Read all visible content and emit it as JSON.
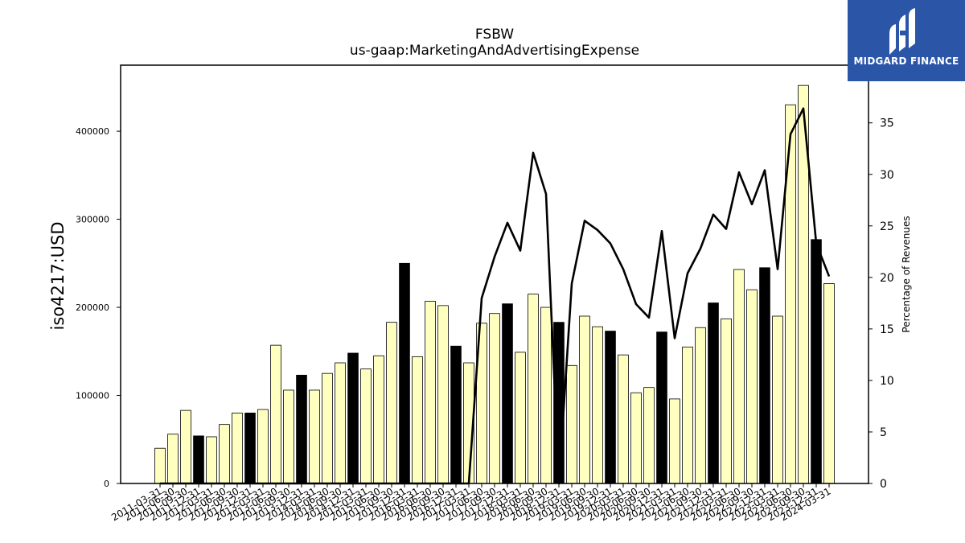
{
  "chart_data": {
    "type": "bar",
    "title": "FSBW",
    "subtitle": "us-gaap:MarketingAndAdvertisingExpense",
    "ylabel": "iso4217:USD",
    "y2label": "Percentage of Revenues",
    "ylim": [
      0,
      475000
    ],
    "y2lim": [
      0,
      40.6
    ],
    "yticks": [
      0,
      100000,
      200000,
      300000,
      400000
    ],
    "y2ticks": [
      0,
      5,
      10,
      15,
      20,
      25,
      30,
      35
    ],
    "bar_colors": {
      "quarter": "#ffffc0",
      "annual": "#000000"
    },
    "line_color": "#000000",
    "categories": [
      "2011-03-31",
      "2011-06-30",
      "2011-09-30",
      "2011-12-31",
      "2012-03-31",
      "2012-06-30",
      "2012-09-30",
      "2012-12-31",
      "2013-03-31",
      "2013-06-30",
      "2013-09-30",
      "2013-12-31",
      "2014-03-31",
      "2014-06-30",
      "2014-09-30",
      "2014-12-31",
      "2015-03-31",
      "2015-06-30",
      "2015-09-30",
      "2015-12-31",
      "2016-03-31",
      "2016-06-30",
      "2016-09-30",
      "2016-12-31",
      "2017-03-31",
      "2017-06-30",
      "2017-09-30",
      "2017-12-31",
      "2018-03-31",
      "2018-06-30",
      "2018-09-30",
      "2018-12-31",
      "2019-03-31",
      "2019-06-30",
      "2019-09-30",
      "2019-12-31",
      "2020-03-31",
      "2020-06-30",
      "2020-09-30",
      "2020-12-31",
      "2021-03-31",
      "2021-06-30",
      "2021-09-30",
      "2021-12-31",
      "2022-03-31",
      "2022-06-30",
      "2022-09-30",
      "2022-12-31",
      "2023-03-31",
      "2023-06-30",
      "2023-09-30",
      "2023-12-31",
      "2024-03-31"
    ],
    "values": [
      40000,
      56000,
      83000,
      54000,
      53000,
      67000,
      80000,
      80000,
      84000,
      157000,
      106000,
      123000,
      106000,
      125000,
      137000,
      148000,
      130000,
      145000,
      183000,
      250000,
      144000,
      207000,
      202000,
      156000,
      137000,
      182000,
      193000,
      204000,
      149000,
      215000,
      200000,
      183000,
      134000,
      190000,
      178000,
      173000,
      146000,
      103000,
      109000,
      172000,
      96000,
      155000,
      177000,
      205000,
      187000,
      243000,
      220000,
      245000,
      190000,
      430000,
      452000,
      277000,
      227000
    ],
    "annual": [
      false,
      false,
      false,
      true,
      false,
      false,
      false,
      true,
      false,
      false,
      false,
      true,
      false,
      false,
      false,
      true,
      false,
      false,
      false,
      true,
      false,
      false,
      false,
      true,
      false,
      false,
      false,
      true,
      false,
      false,
      false,
      true,
      false,
      false,
      false,
      true,
      false,
      false,
      false,
      true,
      false,
      false,
      false,
      true,
      false,
      false,
      false,
      true,
      false,
      false,
      false,
      true,
      false
    ],
    "series": [
      {
        "values": [
          0,
          0,
          0,
          0,
          0,
          0,
          0,
          0,
          0,
          0,
          0,
          0,
          0,
          0,
          0,
          0,
          0,
          0,
          0,
          0,
          0,
          0,
          0,
          0,
          0,
          18.0,
          22.0,
          25.3,
          22.6,
          32.1,
          28.1,
          0,
          19.4,
          25.5,
          24.6,
          23.3,
          20.8,
          17.4,
          16.1,
          24.5,
          14.1,
          20.4,
          22.8,
          26.1,
          24.7,
          30.2,
          27.1,
          30.4,
          20.8,
          33.9,
          36.4,
          23.3,
          20.1
        ]
      }
    ]
  },
  "logo": {
    "text": "MIDGARD FINANCE"
  }
}
